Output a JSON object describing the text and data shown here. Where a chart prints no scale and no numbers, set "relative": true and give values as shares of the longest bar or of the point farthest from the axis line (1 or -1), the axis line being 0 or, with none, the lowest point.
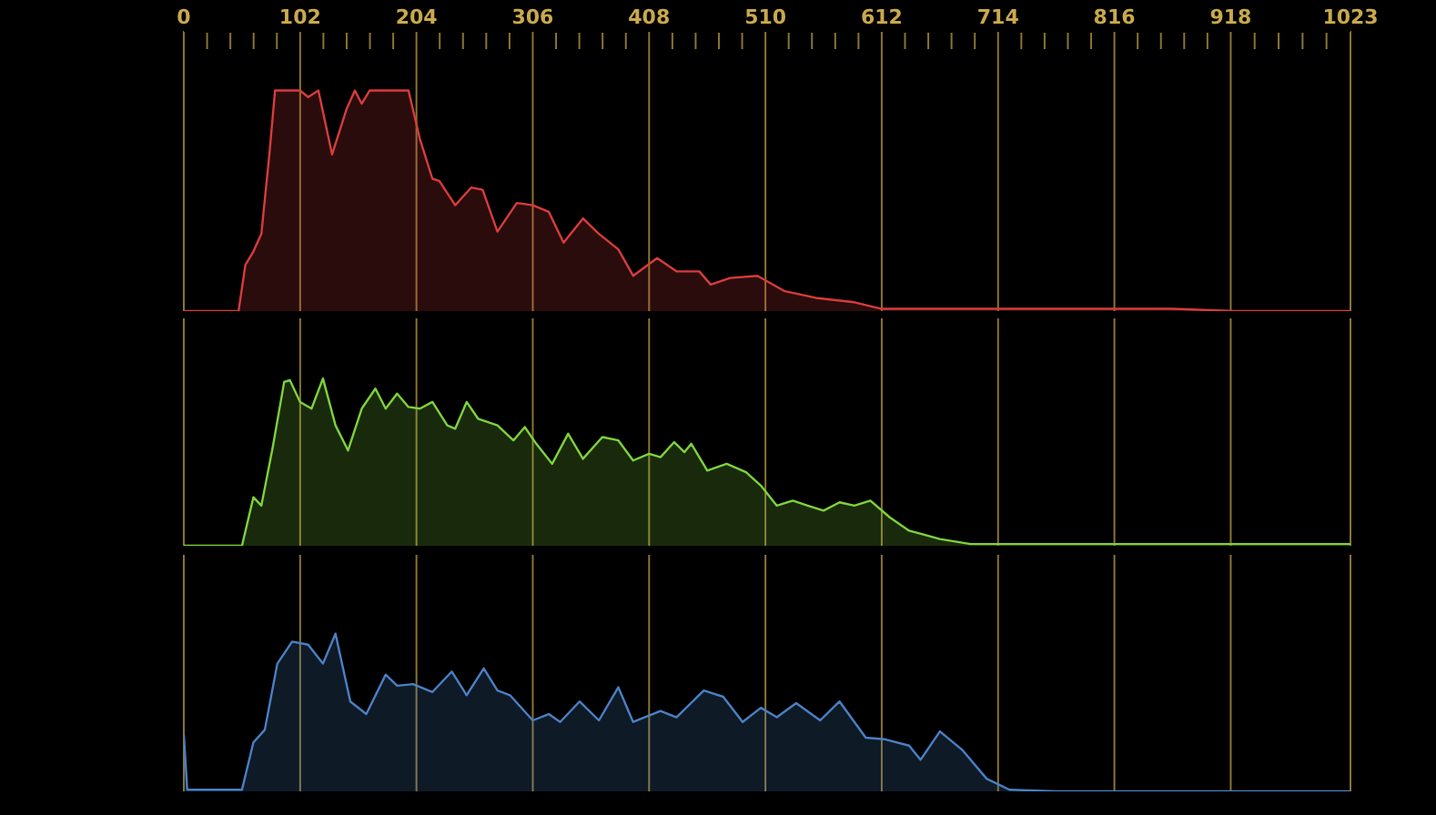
{
  "chart_data": [
    {
      "type": "area",
      "relative": true,
      "grid": "x",
      "xlim": [
        0,
        1023
      ],
      "xticks": [
        0,
        102,
        204,
        306,
        408,
        510,
        612,
        714,
        816,
        918,
        1023
      ],
      "x": [
        0,
        48,
        54,
        61,
        68,
        75,
        80,
        102,
        109,
        118,
        130,
        143,
        150,
        156,
        163,
        197,
        207,
        218,
        224,
        238,
        252,
        262,
        275,
        292,
        306,
        320,
        333,
        350,
        364,
        381,
        394,
        415,
        432,
        452,
        462,
        479,
        503,
        527,
        554,
        588,
        612,
        663,
        731,
        867,
        921,
        1023
      ],
      "series": [
        {
          "color": "#d83c3c",
          "values": [
            0,
            0,
            0.21,
            0.27,
            0.35,
            0.71,
            1,
            1,
            0.97,
            1,
            0.71,
            0.92,
            1,
            0.94,
            1,
            1,
            0.78,
            0.6,
            0.59,
            0.48,
            0.56,
            0.55,
            0.36,
            0.49,
            0.48,
            0.45,
            0.31,
            0.42,
            0.35,
            0.28,
            0.16,
            0.24,
            0.18,
            0.18,
            0.12,
            0.15,
            0.16,
            0.09,
            0.06,
            0.04,
            0.01,
            0.01,
            0.01,
            0.01,
            0,
            0
          ]
        }
      ]
    },
    {
      "type": "area",
      "relative": true,
      "grid": "x",
      "tick_labels": false,
      "xlim": [
        0,
        1023
      ],
      "xticks": [
        0,
        102,
        204,
        306,
        408,
        510,
        612,
        714,
        816,
        918,
        1023
      ],
      "x": [
        0,
        51,
        61,
        68,
        78,
        88,
        93,
        102,
        112,
        122,
        133,
        144,
        156,
        168,
        177,
        187,
        197,
        207,
        218,
        231,
        238,
        248,
        258,
        275,
        289,
        299,
        309,
        323,
        337,
        350,
        367,
        381,
        394,
        408,
        418,
        430,
        439,
        445,
        459,
        476,
        493,
        506,
        520,
        534,
        547,
        561,
        575,
        588,
        602,
        619,
        636,
        663,
        690,
        731,
        1023
      ],
      "series": [
        {
          "color": "#7ed23c",
          "values": [
            0,
            0,
            0.29,
            0.24,
            0.59,
            0.98,
            0.99,
            0.86,
            0.82,
            1,
            0.72,
            0.57,
            0.82,
            0.94,
            0.82,
            0.91,
            0.83,
            0.82,
            0.86,
            0.72,
            0.7,
            0.86,
            0.76,
            0.72,
            0.63,
            0.71,
            0.61,
            0.49,
            0.67,
            0.52,
            0.65,
            0.63,
            0.51,
            0.55,
            0.53,
            0.62,
            0.56,
            0.61,
            0.45,
            0.49,
            0.44,
            0.36,
            0.24,
            0.27,
            0.24,
            0.21,
            0.26,
            0.24,
            0.27,
            0.17,
            0.09,
            0.04,
            0.01,
            0.01,
            0.01
          ]
        }
      ]
    },
    {
      "type": "area",
      "relative": true,
      "grid": "x",
      "tick_labels": false,
      "xlim": [
        0,
        1023
      ],
      "xticks": [
        0,
        102,
        204,
        306,
        408,
        510,
        612,
        714,
        816,
        918,
        1023
      ],
      "x": [
        0,
        3,
        51,
        61,
        71,
        82,
        95,
        109,
        122,
        133,
        146,
        160,
        177,
        187,
        201,
        218,
        235,
        248,
        263,
        275,
        286,
        306,
        320,
        330,
        347,
        364,
        381,
        394,
        418,
        432,
        456,
        473,
        490,
        506,
        520,
        537,
        558,
        575,
        598,
        615,
        636,
        646,
        663,
        683,
        704,
        724,
        765,
        1023
      ],
      "series": [
        {
          "color": "#4a80c4",
          "values": [
            0.36,
            0.01,
            0.01,
            0.31,
            0.39,
            0.81,
            0.95,
            0.93,
            0.81,
            1,
            0.57,
            0.49,
            0.74,
            0.67,
            0.68,
            0.63,
            0.76,
            0.61,
            0.78,
            0.64,
            0.61,
            0.45,
            0.49,
            0.44,
            0.57,
            0.45,
            0.66,
            0.44,
            0.51,
            0.47,
            0.64,
            0.6,
            0.44,
            0.53,
            0.47,
            0.56,
            0.45,
            0.57,
            0.34,
            0.33,
            0.29,
            0.2,
            0.38,
            0.26,
            0.08,
            0.01,
            0,
            0
          ]
        }
      ]
    }
  ]
}
